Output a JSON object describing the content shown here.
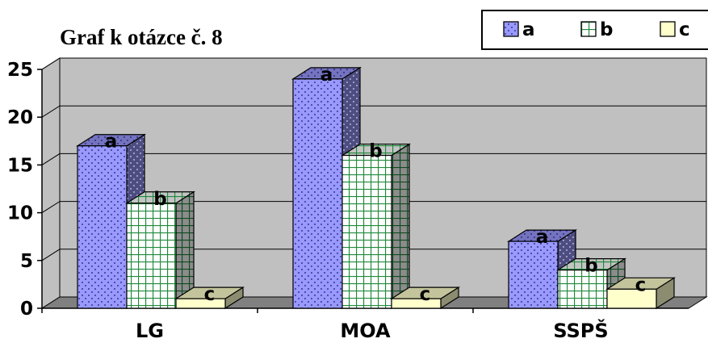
{
  "chart_data": {
    "type": "bar",
    "title": "Graf k otázce č. 8",
    "categories": [
      "LG",
      "MOA",
      "SSPŠ"
    ],
    "series": [
      {
        "name": "a",
        "values": [
          17,
          24,
          7
        ],
        "labels": [
          "a",
          "a",
          "a"
        ]
      },
      {
        "name": "b",
        "values": [
          11,
          16,
          4
        ],
        "labels": [
          "b",
          "b",
          "b"
        ]
      },
      {
        "name": "c",
        "values": [
          1,
          1,
          2
        ],
        "labels": [
          "c",
          "c",
          "c"
        ]
      }
    ],
    "y_ticks": [
      "0",
      "5",
      "10",
      "15",
      "20",
      "25"
    ],
    "ylim": [
      0,
      25
    ],
    "grid": true,
    "legend_position": "top-right",
    "three_d": true
  },
  "colors": {
    "series": [
      "#9999ff",
      "#ffffff",
      "#ffffcc"
    ],
    "wall": "#c0c0c0",
    "floor": "#808080",
    "b_grid": "#1f8a3c"
  }
}
